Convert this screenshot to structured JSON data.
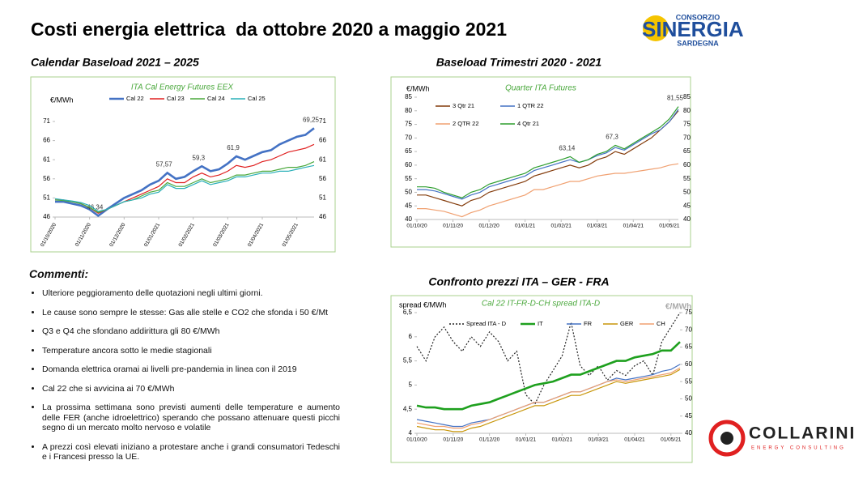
{
  "title": "Costi energia elettrica  da ottobre 2020 a maggio 2021",
  "logo_top": {
    "line1": "CONSORZIO",
    "name": "SINERGIA",
    "line2": "SARDEGNA"
  },
  "logo_bottom": {
    "name": "COLLARINI",
    "tagline": "ENERGY CONSULTING"
  },
  "comments": {
    "heading": "Commenti:",
    "items": [
      "Ulteriore peggioramento delle quotazioni negli ultimi giorni.",
      "Le cause sono sempre le stesse:  Gas alle stelle e CO2 che sfonda i 50 €/Mt",
      "Q3 e Q4 che sfondano addirittura gli 80 €/MWh",
      "Temperature ancora sotto le medie stagionali",
      "Domanda elettrica oramai ai livelli pre-pandemia in linea con il 2019",
      "Cal 22 che si avvicina ai 70 €/MWh",
      "La prossima settimana sono previsti aumenti delle temperature e aumento delle FER (anche idroelettrico) sperando che possano attenuare questi picchi segno di un mercato molto nervoso e volatile",
      "A prezzi così elevati iniziano a protestare anche i grandi consumatori Tedeschi e i Francesi presso la UE."
    ]
  },
  "chart_data": [
    {
      "type": "line",
      "heading": "Calendar Baseload 2021 – 2025",
      "title": "ITA Cal  Energy Futures EEX",
      "ylabel": "€/MWh",
      "categories": [
        "01/10/2020",
        null,
        null,
        null,
        "01/11/2020",
        null,
        null,
        null,
        "01/12/2020",
        null,
        null,
        null,
        "01/01/2021",
        null,
        null,
        null,
        "01/02/2021",
        null,
        null,
        null,
        "01/03/2021",
        null,
        null,
        null,
        "01/04/2021",
        null,
        null,
        null,
        "01/05/2021",
        null,
        null
      ],
      "ylim": [
        46,
        71
      ],
      "yticks": [
        46,
        51,
        56,
        61,
        66,
        71
      ],
      "grid": false,
      "series": [
        {
          "name": "Cal 22",
          "color": "#4472c4",
          "values": [
            50,
            50,
            49.5,
            49,
            48,
            46.34,
            48,
            49.5,
            51,
            52,
            53,
            54.5,
            55.5,
            57.57,
            56,
            56.5,
            58,
            59.3,
            58,
            58.5,
            60,
            61.9,
            61,
            62,
            63,
            63.5,
            65,
            66,
            67,
            67.5,
            69.25
          ],
          "value_labels": [
            null,
            null,
            null,
            null,
            null,
            "46,34",
            null,
            null,
            null,
            null,
            null,
            null,
            null,
            "57,57",
            null,
            null,
            null,
            "59,3",
            null,
            null,
            null,
            "61,9",
            null,
            null,
            null,
            null,
            null,
            null,
            null,
            null,
            "69,25"
          ]
        },
        {
          "name": "Cal 23",
          "color": "#e02020",
          "values": [
            50.5,
            50.5,
            50,
            49.5,
            48.5,
            47,
            48,
            49,
            50,
            51,
            52,
            53,
            54,
            56,
            55,
            55,
            56.5,
            57.5,
            56.5,
            57,
            58,
            59.5,
            59,
            59.5,
            60.5,
            61,
            62,
            63,
            63.5,
            64,
            65
          ]
        },
        {
          "name": "Cal 24",
          "color": "#4aa83c",
          "values": [
            50.5,
            50.3,
            50,
            49.5,
            48.5,
            47.2,
            48,
            49,
            50,
            50.5,
            51.5,
            52.5,
            53,
            55,
            54,
            54,
            55,
            56,
            55,
            55.5,
            56,
            57,
            57,
            57.5,
            58,
            58,
            58.5,
            59,
            59,
            59.5,
            60.5
          ]
        },
        {
          "name": "Cal 25",
          "color": "#2ab0b8",
          "values": [
            50.8,
            50.5,
            50.2,
            49.8,
            49,
            47.5,
            48,
            49,
            50,
            50.5,
            51,
            52,
            52.5,
            54.5,
            53.5,
            53.5,
            54.5,
            55.5,
            54.5,
            55,
            55.5,
            56.5,
            56.5,
            57,
            57.5,
            57.5,
            58,
            58,
            58.5,
            59,
            59.5
          ]
        }
      ]
    },
    {
      "type": "line",
      "heading": "Baseload Trimestri 2020 - 2021",
      "title": "Quarter ITA Futures",
      "ylabel": "€/MWh",
      "categories": [
        "01/10/20",
        null,
        null,
        null,
        "01/11/20",
        null,
        null,
        null,
        "01/12/20",
        null,
        null,
        null,
        "01/01/21",
        null,
        null,
        null,
        "01/02/21",
        null,
        null,
        null,
        "01/03/21",
        null,
        null,
        null,
        "01/04/21",
        null,
        null,
        null,
        "01/05/21",
        null
      ],
      "ylim": [
        40,
        85
      ],
      "yticks": [
        40,
        45,
        50,
        55,
        60,
        65,
        70,
        75,
        80,
        85
      ],
      "grid": false,
      "series": [
        {
          "name": "3 Qtr 21",
          "color": "#843c0c",
          "values": [
            49,
            49,
            48,
            47,
            46,
            45,
            47,
            48,
            50,
            51,
            52,
            53,
            54,
            56,
            57,
            58,
            59,
            60,
            59,
            60,
            62,
            63,
            65,
            64,
            66,
            68,
            70,
            73,
            76,
            80
          ]
        },
        {
          "name": "1 QTR 22",
          "color": "#4472c4",
          "values": [
            51,
            51,
            50.5,
            49.5,
            48.5,
            47.5,
            49,
            50,
            52,
            53,
            54,
            55,
            56,
            58,
            59,
            60,
            61,
            62,
            61,
            62,
            63.5,
            64.5,
            66.5,
            65.5,
            67.5,
            69.5,
            71.5,
            73,
            76,
            80.5
          ]
        },
        {
          "name": "2 QTR 22",
          "color": "#f0a070",
          "values": [
            44,
            44,
            43.5,
            43,
            42,
            41,
            42.5,
            43.5,
            45,
            46,
            47,
            48,
            49,
            51,
            51,
            52,
            53,
            54,
            54,
            55,
            56,
            56.5,
            57,
            57,
            57.5,
            58,
            58.5,
            59,
            60,
            60.5
          ]
        },
        {
          "name": "4 Qtr 21",
          "color": "#2e9e2e",
          "values": [
            52,
            52,
            51.5,
            50,
            49,
            48,
            50,
            51,
            53,
            54,
            55,
            56,
            57,
            59,
            60,
            61,
            62,
            63.14,
            61,
            62,
            64,
            65,
            67.3,
            66,
            68,
            70,
            72,
            74,
            77,
            81.55
          ],
          "value_labels": [
            null,
            null,
            null,
            null,
            null,
            null,
            null,
            null,
            null,
            null,
            null,
            null,
            null,
            null,
            null,
            null,
            null,
            "63,14",
            null,
            null,
            null,
            null,
            "67,3",
            null,
            null,
            null,
            null,
            null,
            null,
            "81,55"
          ]
        }
      ]
    },
    {
      "type": "line",
      "heading": "Confronto prezzi ITA – GER - FRA",
      "title": "Cal 22  IT-FR-D-CH  spread ITA-D",
      "ylabel": "spread €/MWh",
      "y2label": "€/MWh",
      "categories": [
        "01/10/20",
        null,
        null,
        null,
        "01/11/20",
        null,
        null,
        null,
        "01/12/20",
        null,
        null,
        null,
        "01/01/21",
        null,
        null,
        null,
        "01/02/21",
        null,
        null,
        null,
        "01/03/21",
        null,
        null,
        null,
        "01/04/21",
        null,
        null,
        null,
        "01/05/21",
        null
      ],
      "ylim": [
        4,
        6.5
      ],
      "yticks": [
        4,
        {
          "value": 4.5,
          "label": "4,5"
        },
        5,
        {
          "value": 5.5,
          "label": "5,5"
        },
        6,
        {
          "value": 6.5,
          "label": "6,5"
        }
      ],
      "y2lim": [
        40,
        75
      ],
      "y2ticks": [
        40,
        45,
        50,
        55,
        60,
        65,
        70,
        75
      ],
      "grid": false,
      "series": [
        {
          "name": "Spread ITA - D",
          "color": "#222222",
          "dash": true,
          "values": [
            5.8,
            5.5,
            6,
            6.2,
            5.9,
            5.7,
            6,
            5.8,
            6.1,
            5.9,
            5.5,
            5.7,
            4.8,
            4.6,
            5,
            5.3,
            5.6,
            6.3,
            5.4,
            5.2,
            5.4,
            5.1,
            5.3,
            5.2,
            5.4,
            5.5,
            5.2,
            5.9,
            6.2,
            6.5
          ]
        },
        {
          "name": "IT",
          "color": "#1ea01e",
          "axis": "y2",
          "values": [
            48,
            47.5,
            47.5,
            47,
            47,
            47,
            48,
            48.5,
            49,
            50,
            51,
            52,
            53,
            54,
            54.5,
            55,
            56,
            57,
            57,
            58,
            59,
            60,
            61,
            61,
            62,
            62.5,
            63,
            64,
            64,
            66.5
          ]
        },
        {
          "name": "FR",
          "color": "#4472c4",
          "axis": "y2",
          "values": [
            44,
            43.5,
            43,
            42.5,
            42,
            42,
            43,
            43.5,
            44,
            45,
            46,
            47,
            48,
            49,
            49,
            50,
            51,
            52,
            52,
            53,
            54,
            55,
            56,
            55.5,
            56,
            56.5,
            57,
            58,
            58.5,
            60
          ]
        },
        {
          "name": "GER",
          "color": "#c8960a",
          "axis": "y2",
          "values": [
            42,
            41.5,
            41,
            41,
            40.5,
            40.5,
            41.5,
            42,
            43,
            44,
            45,
            46,
            47,
            48,
            48,
            49,
            50,
            51,
            51,
            52,
            53,
            54,
            55,
            54.5,
            55,
            55.5,
            56,
            56.5,
            57,
            58.5
          ]
        },
        {
          "name": "CH",
          "color": "#f0a070",
          "axis": "y2",
          "values": [
            43,
            42.5,
            42,
            42,
            41.5,
            41.5,
            42.5,
            43,
            44,
            45,
            46,
            47,
            48,
            49,
            49,
            50,
            51,
            52,
            52,
            53,
            54,
            55,
            55.5,
            55,
            55.5,
            56,
            56.5,
            57,
            57.5,
            59
          ]
        }
      ]
    }
  ]
}
